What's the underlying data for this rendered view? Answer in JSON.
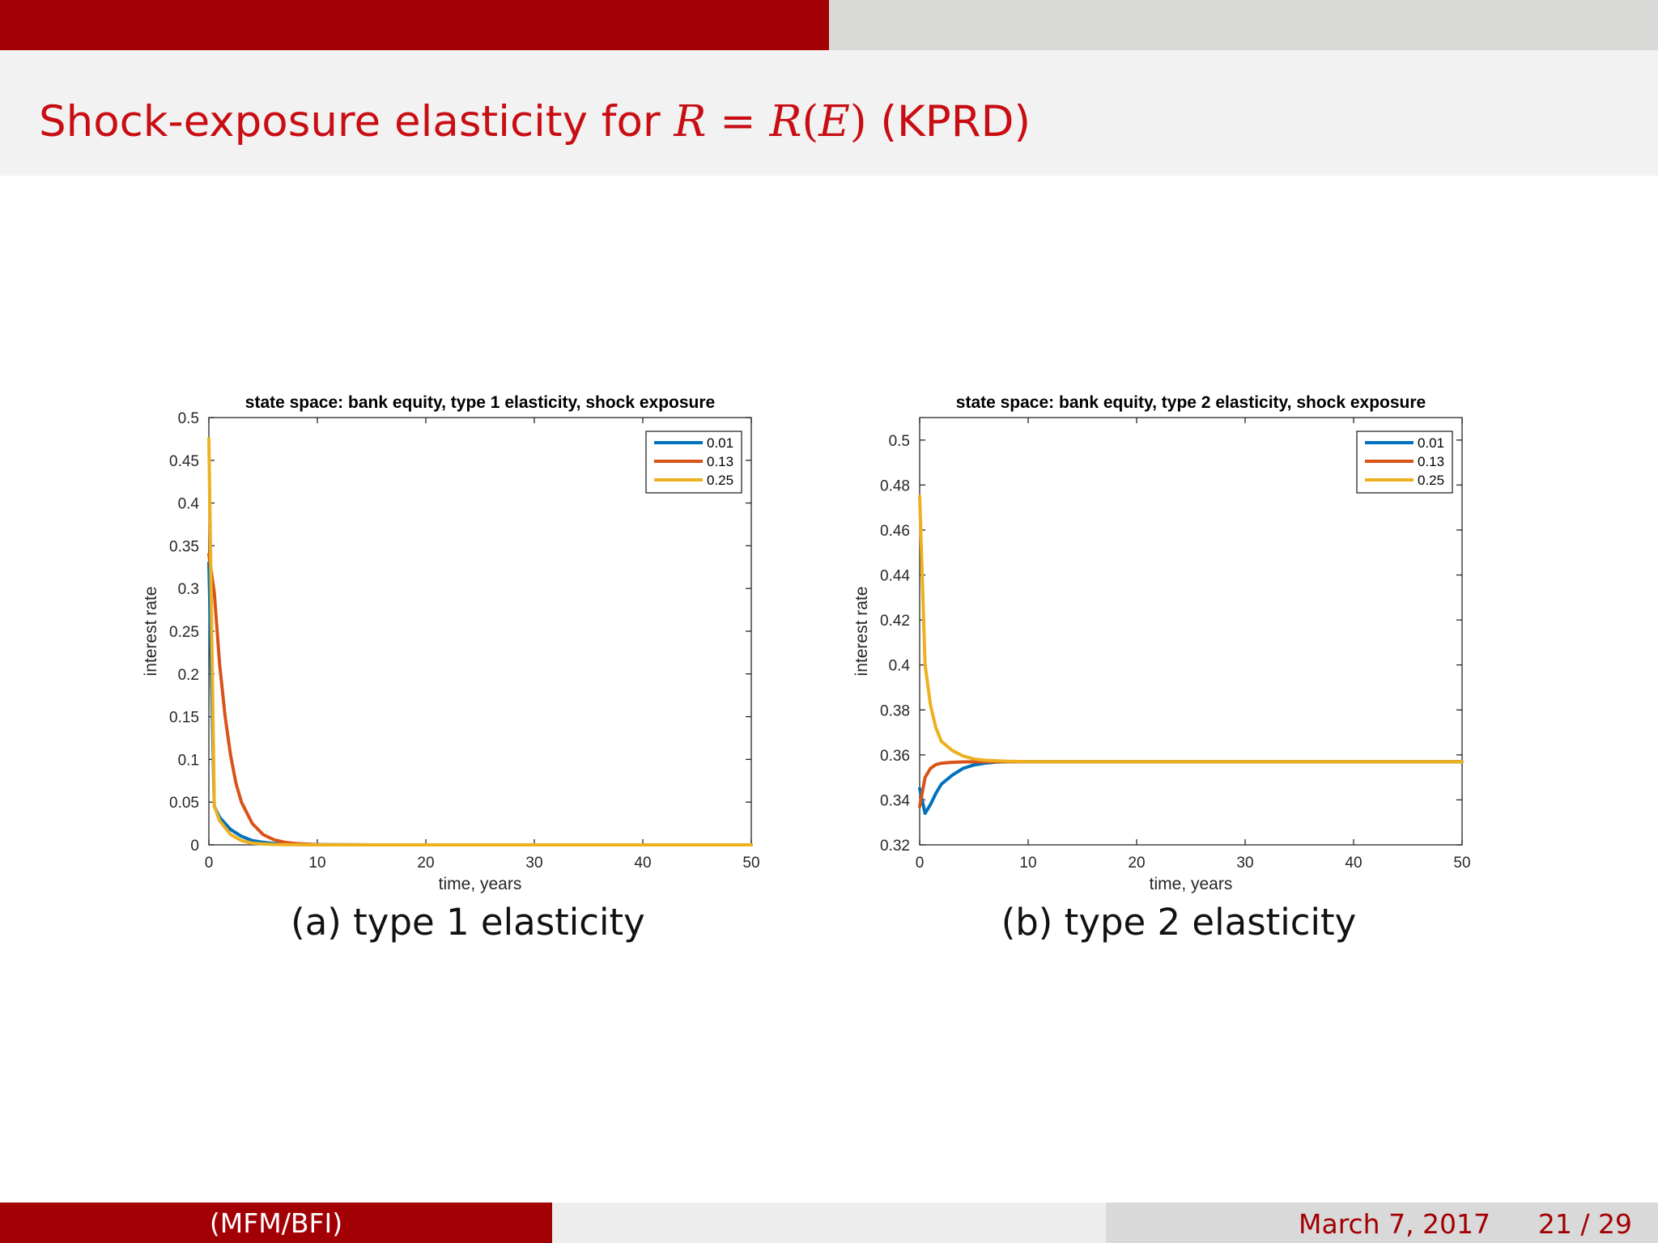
{
  "slide": {
    "title_prefix": "Shock-exposure elasticity for ",
    "title_lhs": "R",
    "title_eq": " = ",
    "title_rhs_fn": "R",
    "title_rhs_arg_open": "(",
    "title_rhs_arg": "E",
    "title_rhs_arg_close": ")",
    "title_suffix": " (KPRD)"
  },
  "footer": {
    "left_text": "(MFM/BFI)",
    "date": "March 7, 2017",
    "page": "21 / 29"
  },
  "colors": {
    "accent": "#a30005",
    "series_blue": "#0072bd",
    "series_orange": "#d95319",
    "series_yellow": "#edb120"
  },
  "chart_data": [
    {
      "type": "line",
      "title": "state space: bank equity, type 1 elasticity, shock exposure",
      "caption": "(a) type 1 elasticity",
      "xlabel": "time, years",
      "ylabel": "interest rate",
      "xlim": [
        0,
        50
      ],
      "ylim": [
        0,
        0.5
      ],
      "xticks": [
        0,
        10,
        20,
        30,
        40,
        50
      ],
      "xtick_labels": [
        "0",
        "10",
        "20",
        "30",
        "40",
        "50"
      ],
      "yticks": [
        0,
        0.05,
        0.1,
        0.15,
        0.2,
        0.25,
        0.3,
        0.35,
        0.4,
        0.45,
        0.5
      ],
      "ytick_labels": [
        "0",
        "0.05",
        "0.1",
        "0.15",
        "0.2",
        "0.25",
        "0.3",
        "0.35",
        "0.4",
        "0.45",
        "0.5"
      ],
      "legend_position": "top-right",
      "grid": false,
      "series": [
        {
          "name": "0.01",
          "color": "#0072bd",
          "x": [
            0,
            0.5,
            1,
            2,
            3,
            4,
            5,
            6,
            8,
            10,
            15,
            50
          ],
          "y": [
            0.33,
            0.045,
            0.032,
            0.018,
            0.01,
            0.005,
            0.003,
            0.0015,
            0.0005,
            0.0002,
            0,
            0
          ]
        },
        {
          "name": "0.13",
          "color": "#d95319",
          "x": [
            0,
            0.5,
            1,
            1.5,
            2,
            2.5,
            3,
            4,
            5,
            6,
            7,
            8,
            10,
            15,
            50
          ],
          "y": [
            0.34,
            0.295,
            0.21,
            0.15,
            0.105,
            0.072,
            0.05,
            0.025,
            0.012,
            0.006,
            0.003,
            0.0015,
            0.0003,
            0,
            0
          ]
        },
        {
          "name": "0.25",
          "color": "#edb120",
          "x": [
            0,
            0.5,
            1,
            2,
            3,
            4,
            5,
            6,
            8,
            10,
            50
          ],
          "y": [
            0.475,
            0.045,
            0.028,
            0.012,
            0.005,
            0.002,
            0.001,
            0.0005,
            0.0001,
            0,
            0
          ]
        }
      ]
    },
    {
      "type": "line",
      "title": "state space: bank equity, type 2 elasticity, shock exposure",
      "caption": "(b) type 2 elasticity",
      "xlabel": "time, years",
      "ylabel": "interest rate",
      "xlim": [
        0,
        50
      ],
      "ylim": [
        0.32,
        0.51
      ],
      "xticks": [
        0,
        10,
        20,
        30,
        40,
        50
      ],
      "xtick_labels": [
        "0",
        "10",
        "20",
        "30",
        "40",
        "50"
      ],
      "yticks": [
        0.32,
        0.34,
        0.36,
        0.38,
        0.4,
        0.42,
        0.44,
        0.46,
        0.48,
        0.5
      ],
      "ytick_labels": [
        "0.32",
        "0.34",
        "0.36",
        "0.38",
        "0.4",
        "0.42",
        "0.44",
        "0.46",
        "0.48",
        "0.5"
      ],
      "legend_position": "top-right",
      "grid": false,
      "series": [
        {
          "name": "0.01",
          "color": "#0072bd",
          "x": [
            0,
            0.5,
            1,
            1.5,
            2,
            3,
            4,
            5,
            6,
            7,
            8,
            10,
            50
          ],
          "y": [
            0.345,
            0.334,
            0.338,
            0.343,
            0.347,
            0.351,
            0.354,
            0.3555,
            0.3563,
            0.3568,
            0.357,
            0.357,
            0.357
          ]
        },
        {
          "name": "0.13",
          "color": "#d95319",
          "x": [
            0,
            0.5,
            1,
            1.5,
            2,
            3,
            4,
            6,
            8,
            50
          ],
          "y": [
            0.337,
            0.35,
            0.354,
            0.3557,
            0.3563,
            0.3567,
            0.3569,
            0.357,
            0.357,
            0.357
          ]
        },
        {
          "name": "0.25",
          "color": "#edb120",
          "x": [
            0,
            0.5,
            1,
            1.5,
            2,
            3,
            4,
            5,
            6,
            8,
            10,
            50
          ],
          "y": [
            0.475,
            0.4,
            0.382,
            0.372,
            0.366,
            0.362,
            0.3595,
            0.3582,
            0.3576,
            0.3572,
            0.357,
            0.357
          ]
        }
      ]
    }
  ]
}
